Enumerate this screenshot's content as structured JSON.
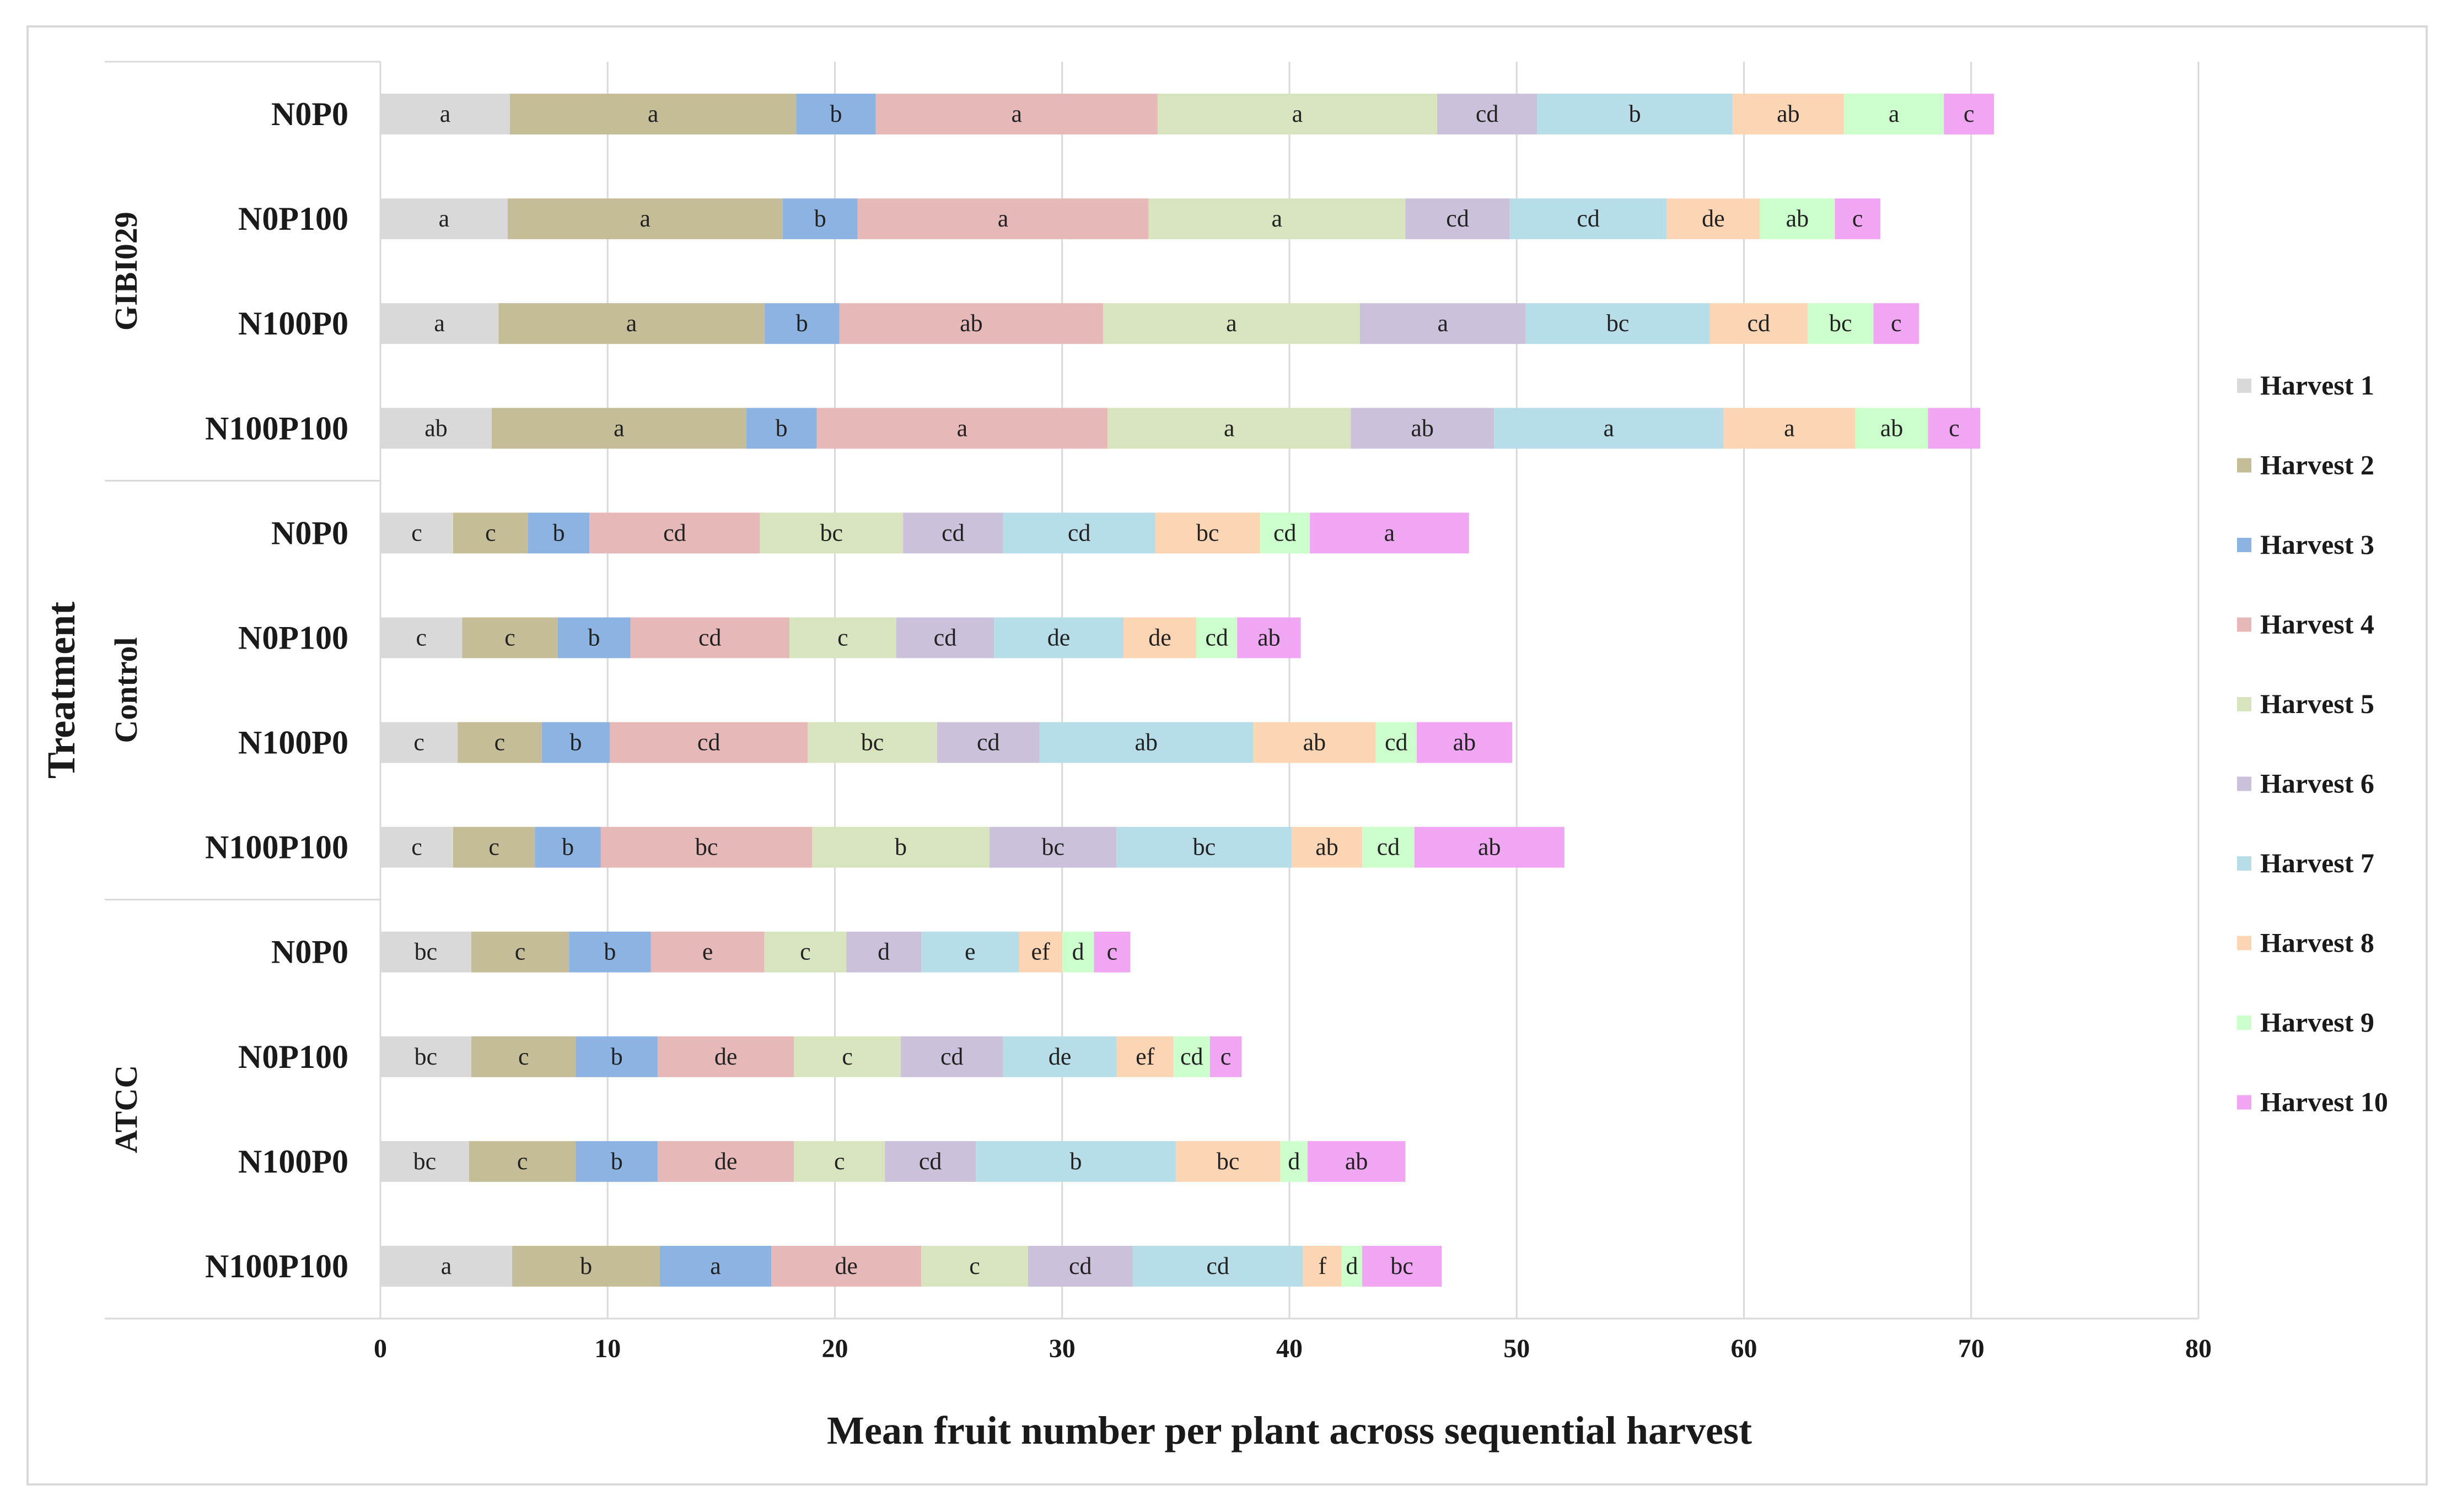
{
  "chart_data": {
    "type": "bar",
    "orientation": "horizontal",
    "stacked": true,
    "title": "",
    "xlabel": "Mean fruit number per plant across sequential harvest",
    "ylabel": "Treatment",
    "xlim": [
      0,
      80
    ],
    "xticks": [
      0,
      10,
      20,
      30,
      40,
      50,
      60,
      70,
      80
    ],
    "grid": true,
    "legend_position": "right",
    "series_names": [
      "Harvest 1",
      "Harvest 2",
      "Harvest 3",
      "Harvest 4",
      "Harvest 5",
      "Harvest 6",
      "Harvest 7",
      "Harvest 8",
      "Harvest 9",
      "Harvest 10"
    ],
    "colors": [
      "#d9d9d9",
      "#c4bd97",
      "#8db3e2",
      "#e6b9b8",
      "#d7e4bd",
      "#ccc1da",
      "#b7dde8",
      "#fcd5b5",
      "#ccffcc",
      "#f0a6f3"
    ],
    "groups": [
      {
        "name": "GIBI029",
        "bars": [
          {
            "label": "N0P0",
            "values": [
              5.7,
              12.6,
              3.5,
              12.4,
              12.3,
              4.4,
              8.6,
              4.9,
              4.4,
              2.2
            ],
            "letters": [
              "a",
              "a",
              "b",
              "a",
              "a",
              "cd",
              "b",
              "ab",
              "a",
              "c"
            ]
          },
          {
            "label": "N0P100",
            "values": [
              5.6,
              12.1,
              3.3,
              12.8,
              11.3,
              4.6,
              6.9,
              4.1,
              3.3,
              2.0
            ],
            "letters": [
              "a",
              "a",
              "b",
              "a",
              "a",
              "cd",
              "cd",
              "de",
              "ab",
              "c"
            ]
          },
          {
            "label": "N100P0",
            "values": [
              5.2,
              11.7,
              3.3,
              11.6,
              11.3,
              7.3,
              8.1,
              4.3,
              2.9,
              2.0
            ],
            "letters": [
              "a",
              "a",
              "b",
              "ab",
              "a",
              "a",
              "bc",
              "cd",
              "bc",
              "c"
            ]
          },
          {
            "label": "N100P100",
            "values": [
              4.9,
              11.2,
              3.1,
              12.8,
              10.7,
              6.3,
              10.1,
              5.8,
              3.2,
              2.3
            ],
            "letters": [
              "ab",
              "a",
              "b",
              "a",
              "a",
              "ab",
              "a",
              "a",
              "ab",
              "c"
            ]
          }
        ]
      },
      {
        "name": "Control",
        "bars": [
          {
            "label": "N0P0",
            "values": [
              3.2,
              3.3,
              2.7,
              7.5,
              6.3,
              4.4,
              6.7,
              4.6,
              2.2,
              7.0
            ],
            "letters": [
              "c",
              "c",
              "b",
              "cd",
              "bc",
              "cd",
              "cd",
              "bc",
              "cd",
              "a"
            ]
          },
          {
            "label": "N0P100",
            "values": [
              3.6,
              4.2,
              3.2,
              7.0,
              4.7,
              4.3,
              5.7,
              3.2,
              1.8,
              2.8
            ],
            "letters": [
              "c",
              "c",
              "b",
              "cd",
              "c",
              "cd",
              "de",
              "de",
              "cd",
              "ab"
            ]
          },
          {
            "label": "N100P0",
            "values": [
              3.4,
              3.7,
              3.0,
              8.7,
              5.7,
              4.5,
              9.4,
              5.4,
              1.8,
              4.2
            ],
            "letters": [
              "c",
              "c",
              "b",
              "cd",
              "bc",
              "cd",
              "ab",
              "ab",
              "cd",
              "ab"
            ]
          },
          {
            "label": "N100P100",
            "values": [
              3.2,
              3.6,
              2.9,
              9.3,
              7.8,
              5.6,
              7.7,
              3.1,
              2.3,
              6.6
            ],
            "letters": [
              "c",
              "c",
              "b",
              "bc",
              "b",
              "bc",
              "bc",
              "ab",
              "cd",
              "ab"
            ]
          }
        ]
      },
      {
        "name": "ATCC",
        "bars": [
          {
            "label": "N0P0",
            "values": [
              4.0,
              4.3,
              3.6,
              5.0,
              3.6,
              3.3,
              4.3,
              1.9,
              1.4,
              1.6
            ],
            "letters": [
              "bc",
              "c",
              "b",
              "e",
              "c",
              "d",
              "e",
              "ef",
              "d",
              "c"
            ]
          },
          {
            "label": "N0P100",
            "values": [
              4.0,
              4.6,
              3.6,
              6.0,
              4.7,
              4.5,
              5.0,
              2.5,
              1.6,
              1.4
            ],
            "letters": [
              "bc",
              "c",
              "b",
              "de",
              "c",
              "cd",
              "de",
              "ef",
              "cd",
              "c"
            ]
          },
          {
            "label": "N100P0",
            "values": [
              3.9,
              4.7,
              3.6,
              6.0,
              4.0,
              4.0,
              8.8,
              4.6,
              1.2,
              4.3
            ],
            "letters": [
              "bc",
              "c",
              "b",
              "de",
              "c",
              "cd",
              "b",
              "bc",
              "d",
              "ab"
            ]
          },
          {
            "label": "N100P100",
            "values": [
              5.8,
              6.5,
              4.9,
              6.6,
              4.7,
              4.6,
              7.5,
              1.7,
              0.9,
              3.5
            ],
            "letters": [
              "a",
              "b",
              "a",
              "de",
              "c",
              "cd",
              "cd",
              "f",
              "d",
              "bc"
            ]
          }
        ]
      }
    ]
  }
}
